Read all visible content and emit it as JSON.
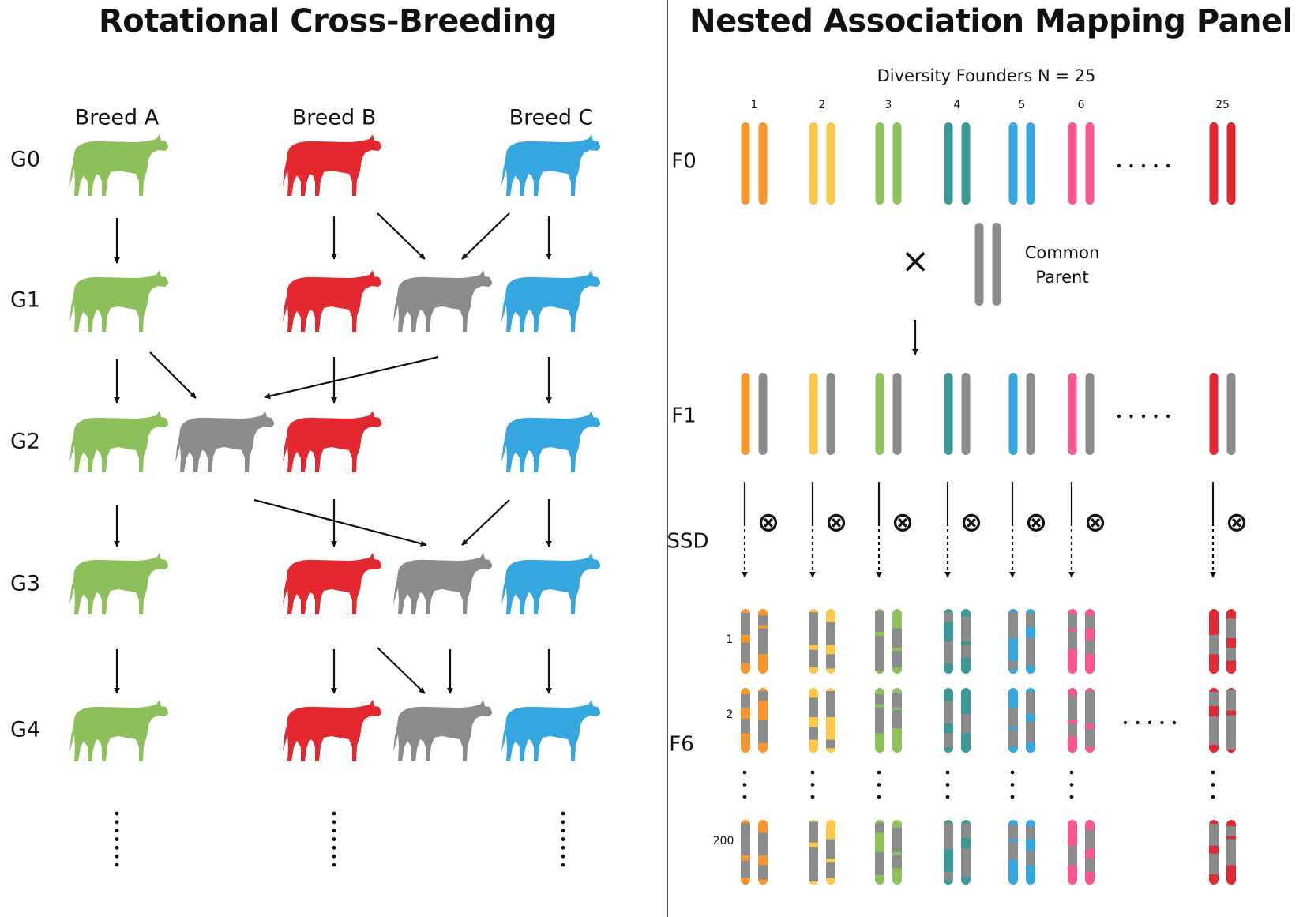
{
  "left_panel": {
    "title": "Rotational Cross-Breeding",
    "breeds": [
      {
        "label": "Breed A",
        "color": "#8dc05a"
      },
      {
        "label": "Breed B",
        "color": "#e32830"
      },
      {
        "label": "Breed C",
        "color": "#35a7de"
      }
    ],
    "crossbred_color": "#8a8b8b",
    "generations": [
      "G0",
      "G1",
      "G2",
      "G3",
      "G4"
    ]
  },
  "right_panel": {
    "title": "Nested Association Mapping Panel",
    "founders_label": "Diversity Founders N = 25",
    "founder_numbers": [
      "1",
      "2",
      "3",
      "4",
      "5",
      "6",
      "25"
    ],
    "founder_colors": [
      "#f7962f",
      "#fdc74c",
      "#8bc259",
      "#3c9797",
      "#33a7df",
      "#f9588f",
      "#e22833"
    ],
    "common_parent_color": "#8a8b8b",
    "common_parent_label": [
      "Common",
      "Parent"
    ],
    "cross_symbol": "×",
    "selfing_symbol": "⊗",
    "generation_labels": {
      "f0": "F0",
      "f1": "F1",
      "ssd": "SSD",
      "f6": "F6"
    },
    "ril_labels": [
      "1",
      "2",
      "200"
    ],
    "ellipsis": "· · · · ·"
  }
}
